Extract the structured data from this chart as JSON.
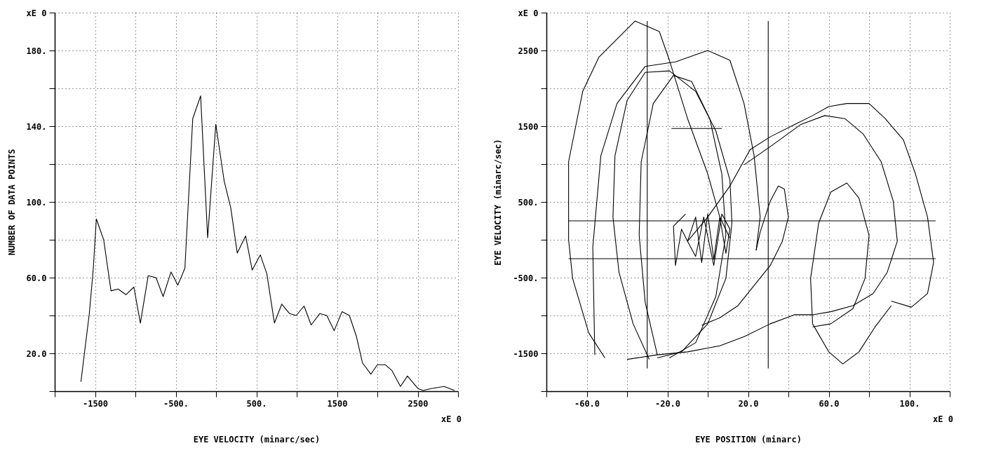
{
  "chart_data": [
    {
      "type": "line",
      "xlabel": "EYE VELOCITY (minarc/sec)",
      "ylabel": "NUMBER OF DATA POINTS",
      "annotations": [
        "xE 0"
      ],
      "grid": true,
      "line_style": "solid",
      "xlim": [
        -2000,
        3000
      ],
      "ylim": [
        0,
        200
      ],
      "xticks": [
        {
          "value": -2000,
          "label": null
        },
        -1500,
        {
          "value": -1000,
          "label": null
        },
        {
          "value": -500,
          "label": "-500."
        },
        {
          "value": 0,
          "label": null
        },
        {
          "value": 500,
          "label": "500."
        },
        {
          "value": 1000,
          "label": null
        },
        1500,
        {
          "value": 2000,
          "label": null
        },
        2500,
        {
          "value": 3000,
          "label": null
        }
      ],
      "yticks": [
        {
          "value": 0,
          "label": null
        },
        {
          "value": 20,
          "label": "20.0"
        },
        {
          "value": 40,
          "label": null
        },
        {
          "value": 60,
          "label": "60.0"
        },
        {
          "value": 80,
          "label": null
        },
        {
          "value": 100,
          "label": "100."
        },
        {
          "value": 120,
          "label": null
        },
        {
          "value": 140,
          "label": "140."
        },
        {
          "value": 160,
          "label": null
        },
        {
          "value": 180,
          "label": "180."
        },
        {
          "value": 200,
          "label": "xE 0"
        }
      ],
      "x": [
        -1675,
        -1571,
        -1523,
        -1484,
        -1393,
        -1302,
        -1214,
        -1117,
        -1019,
        -938,
        -841,
        -744,
        -656,
        -558,
        -474,
        -386,
        -289,
        -191,
        -104,
        -3,
        101,
        182,
        263,
        367,
        448,
        549,
        630,
        724,
        815,
        912,
        994,
        1091,
        1179,
        1286,
        1373,
        1464,
        1562,
        1653,
        1740,
        1815,
        1919,
        2000,
        2097,
        2179,
        2286,
        2373,
        2503,
        2568,
        2666,
        2828,
        2958
      ],
      "series": [
        {
          "color": "#000000",
          "values": [
            5,
            41,
            64,
            91,
            80,
            53,
            54,
            51,
            55,
            36,
            61,
            60,
            50,
            63,
            56,
            65,
            144,
            156,
            81,
            141,
            111,
            97,
            73,
            82,
            64,
            72,
            62,
            36,
            46,
            41,
            40,
            45,
            35,
            41,
            40,
            32,
            42,
            40,
            29,
            15,
            9,
            14,
            14,
            11,
            2.5,
            8,
            1.4,
            0.4,
            1.4,
            2.5,
            0.4
          ]
        }
      ]
    },
    {
      "type": "line",
      "xlabel": "EYE POSITION (minarc)",
      "ylabel": "EYE VELOCITY (minarc/sec)",
      "annotations": [
        "xE 0"
      ],
      "grid": true,
      "line_style": "solid",
      "xlim": [
        -80,
        120
      ],
      "ylim": [
        -2000,
        3000
      ],
      "xticks": [
        {
          "value": -80,
          "label": null
        },
        {
          "value": -60,
          "label": "-60.0"
        },
        {
          "value": -40,
          "label": null
        },
        {
          "value": -20,
          "label": "-20.0"
        },
        {
          "value": 0,
          "label": null
        },
        {
          "value": 20,
          "label": "20.0"
        },
        {
          "value": 40,
          "label": null
        },
        {
          "value": 60,
          "label": "60.0"
        },
        {
          "value": 80,
          "label": null
        },
        {
          "value": 100,
          "label": "100."
        },
        {
          "value": 120,
          "label": null
        }
      ],
      "yticks": [
        {
          "value": -2000,
          "label": null
        },
        -1500,
        {
          "value": -1000,
          "label": null
        },
        {
          "value": -500,
          "label": "-500."
        },
        {
          "value": 0,
          "label": null
        },
        {
          "value": 500,
          "label": "500."
        },
        {
          "value": 1000,
          "label": null
        },
        1500,
        {
          "value": 2000,
          "label": null
        },
        2500,
        {
          "value": 3000,
          "label": "xE 0"
        }
      ],
      "series": [
        {
          "color": "#000000",
          "x": [
            -51,
            -59,
            -67,
            -69,
            -69,
            -62,
            -54,
            -36,
            -24,
            -19,
            -10,
            0,
            6,
            11
          ],
          "values": [
            -1560,
            -1230,
            -510,
            0,
            1030,
            1960,
            2410,
            2890,
            2750,
            2370,
            1600,
            870,
            300,
            20
          ]
        },
        {
          "color": "#000000",
          "x": [
            -29,
            -37,
            -44,
            -47,
            -46,
            -40,
            -31,
            -19,
            -6,
            4,
            11,
            12,
            9,
            0,
            -13,
            -25
          ],
          "values": [
            -1580,
            -1110,
            -430,
            300,
            1110,
            1840,
            2210,
            2230,
            1960,
            1440,
            790,
            220,
            -510,
            -1110,
            -1480,
            -1560
          ]
        },
        {
          "color": "#000000",
          "x": [
            -25,
            -31,
            -34,
            -33,
            -27,
            -17,
            -8,
            1,
            7,
            9,
            4,
            -6,
            -19
          ],
          "values": [
            -1520,
            -830,
            60,
            1030,
            1800,
            2170,
            2090,
            1600,
            870,
            60,
            -750,
            -1360,
            -1560
          ]
        },
        {
          "color": "#000000",
          "x": [
            -56,
            -57,
            -53,
            -45,
            -31,
            -16,
            0,
            11,
            18,
            23,
            26,
            24
          ],
          "values": [
            -1520,
            -100,
            1110,
            1800,
            2290,
            2350,
            2500,
            2370,
            1800,
            1110,
            300,
            -140
          ]
        },
        {
          "color": "#000000",
          "x": [
            -10,
            0,
            11,
            21,
            31,
            43,
            52,
            60,
            69,
            80,
            88,
            97,
            103,
            109,
            112,
            109,
            101,
            91
          ],
          "values": [
            -20,
            300,
            710,
            1190,
            1360,
            1520,
            1640,
            1760,
            1800,
            1800,
            1600,
            1320,
            870,
            300,
            -300,
            -710,
            -890,
            -810
          ]
        },
        {
          "color": "#000000",
          "x": [
            -40,
            -25,
            -10,
            6,
            18,
            31,
            43,
            52,
            61,
            72,
            82,
            89,
            94,
            92,
            86,
            77,
            68,
            58,
            46,
            31,
            18
          ],
          "values": [
            -1580,
            -1520,
            -1480,
            -1400,
            -1280,
            -1110,
            -990,
            -990,
            -950,
            -870,
            -710,
            -430,
            -20,
            510,
            1030,
            1400,
            1600,
            1640,
            1520,
            1230,
            990
          ]
        },
        {
          "color": "#000000",
          "x": [
            52,
            51,
            55,
            61,
            69,
            75,
            80,
            78,
            72,
            61,
            52
          ],
          "values": [
            -1110,
            -510,
            220,
            630,
            750,
            550,
            60,
            -510,
            -910,
            -1110,
            -1150
          ]
        },
        {
          "color": "#000000",
          "x": [
            52,
            60,
            67,
            75,
            83,
            91
          ],
          "values": [
            -1110,
            -1480,
            -1640,
            -1480,
            -1150,
            -870
          ]
        },
        {
          "color": "#000000",
          "x": [
            -3,
            6,
            15,
            21,
            31,
            37,
            40,
            38,
            35,
            31,
            26,
            24
          ],
          "values": [
            -1130,
            -1030,
            -870,
            -670,
            -340,
            -20,
            300,
            670,
            710,
            510,
            100,
            -140
          ]
        },
        {
          "color": "#000000",
          "x": [
            -10,
            -6,
            -3,
            0,
            3,
            6,
            9,
            11,
            7,
            3,
            -2,
            -6,
            -10,
            -13,
            -16,
            -17,
            -11
          ],
          "values": [
            -20,
            300,
            -300,
            340,
            -260,
            300,
            -180,
            140,
            340,
            -340,
            300,
            -220,
            -20,
            140,
            -340,
            180,
            340
          ]
        },
        {
          "color": "#000000",
          "x": [
            -30,
            -30
          ],
          "values": [
            -1700,
            2890
          ]
        },
        {
          "color": "#000000",
          "x": [
            30,
            30
          ],
          "values": [
            -1700,
            2890
          ]
        },
        {
          "color": "#000000",
          "x": [
            -69,
            113
          ],
          "values": [
            250,
            250
          ]
        },
        {
          "color": "#000000",
          "x": [
            -69,
            113
          ],
          "values": [
            -250,
            -250
          ]
        },
        {
          "color": "#000000",
          "x": [
            -18,
            7
          ],
          "values": [
            1470,
            1470
          ]
        }
      ]
    }
  ]
}
